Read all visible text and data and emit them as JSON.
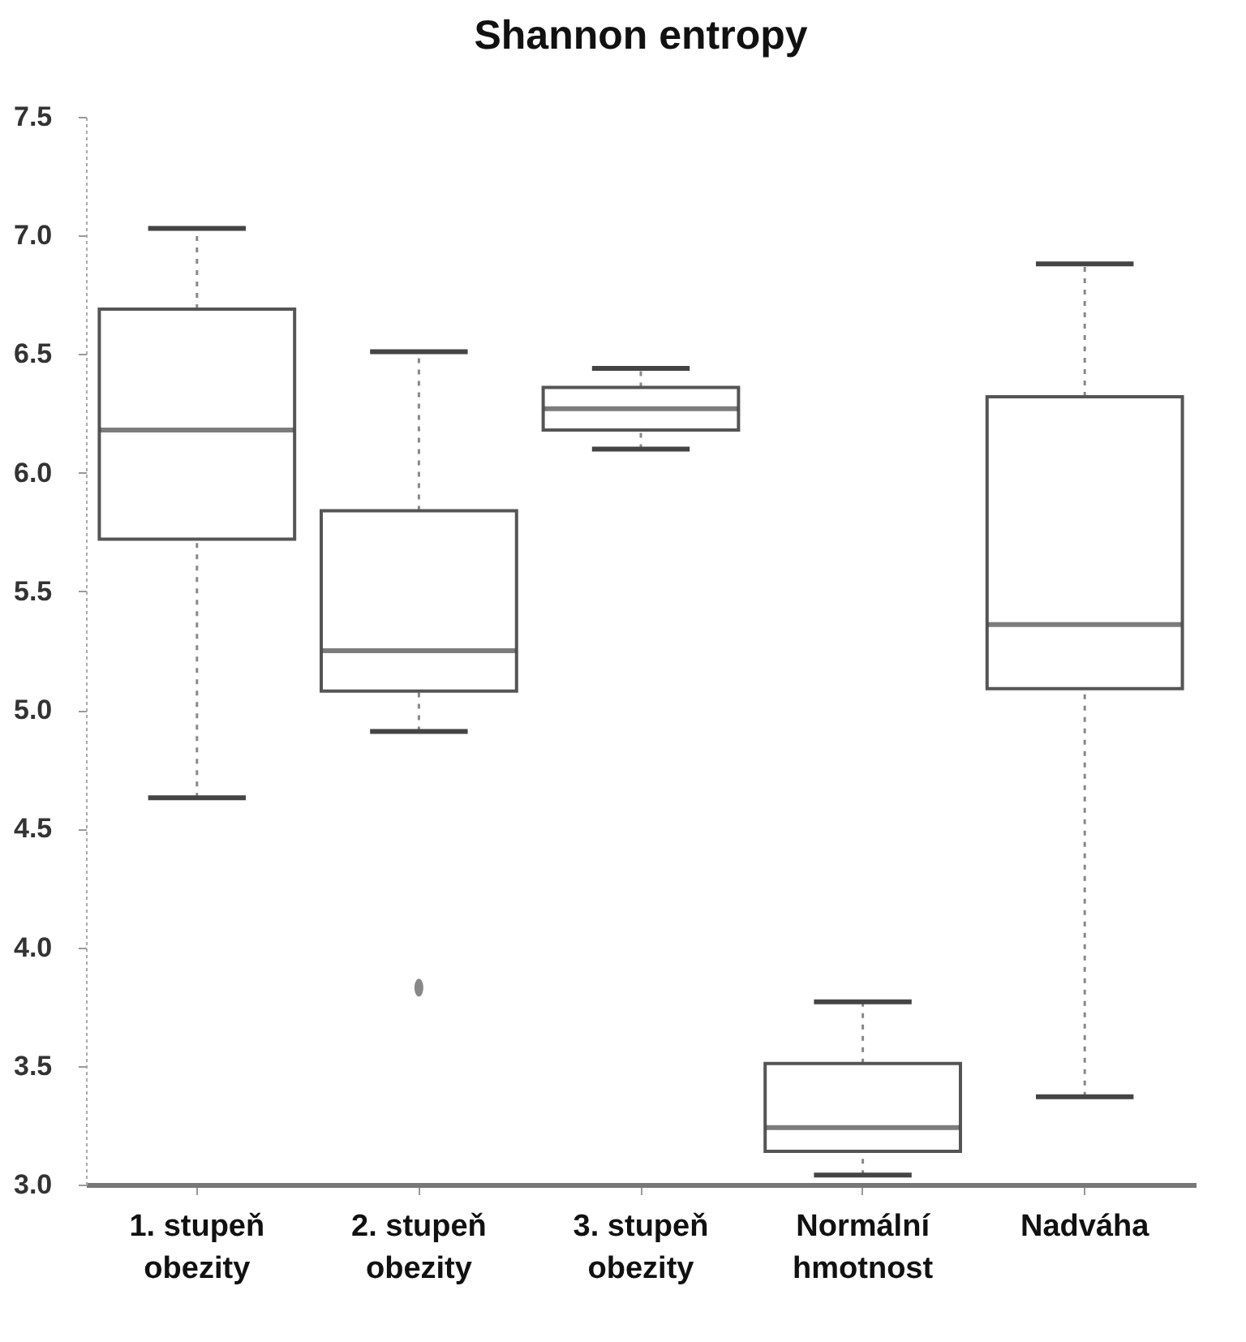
{
  "chart_data": {
    "type": "box",
    "title": "Shannon entropy",
    "categories": [
      "1. stupeň obezity",
      "2. stupeň obezity",
      "3. stupeň obezity",
      "Normální hmotnost",
      "Nadváha"
    ],
    "boxes": [
      {
        "low": 4.63,
        "q1": 5.72,
        "median": 6.18,
        "q3": 6.69,
        "high": 7.03
      },
      {
        "low": 4.91,
        "q1": 5.08,
        "median": 5.25,
        "q3": 5.84,
        "high": 6.51,
        "outliers": [
          3.83
        ]
      },
      {
        "low": 6.1,
        "q1": 6.18,
        "median": 6.27,
        "q3": 6.36,
        "high": 6.44
      },
      {
        "low": 3.04,
        "q1": 3.14,
        "median": 3.24,
        "q3": 3.51,
        "high": 3.77
      },
      {
        "low": 3.37,
        "q1": 5.09,
        "median": 5.36,
        "q3": 6.32,
        "high": 6.88
      }
    ],
    "ylim": [
      3.0,
      7.5
    ],
    "yticks": [
      {
        "value": 3,
        "label": "3.0"
      },
      3.5,
      {
        "value": 4,
        "label": "4.0"
      },
      4.5,
      {
        "value": 5,
        "label": "5.0"
      },
      5.5,
      {
        "value": 6,
        "label": "6.0"
      },
      6.5,
      {
        "value": 7,
        "label": "7.0"
      },
      7.5
    ]
  }
}
